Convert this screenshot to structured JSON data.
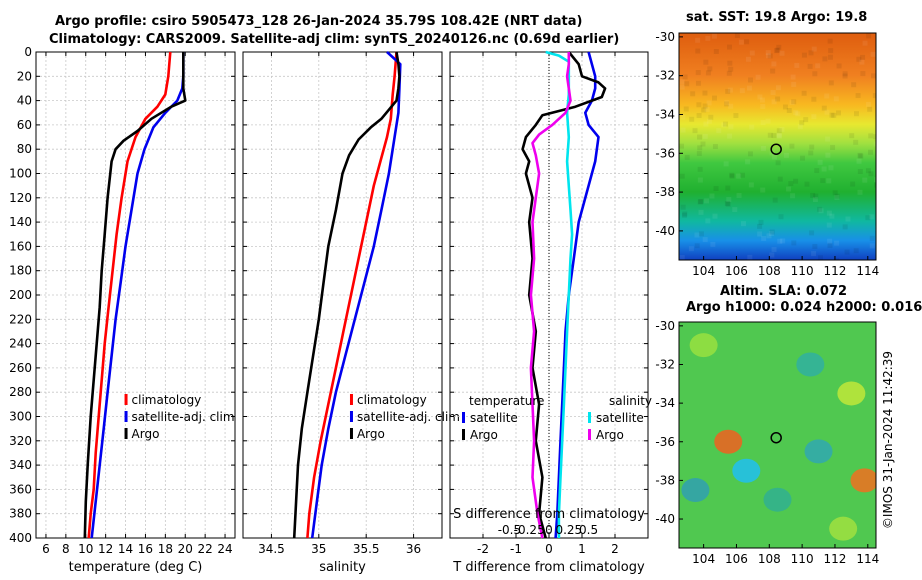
{
  "header": {
    "line1": "Argo profile: csiro 5905473_128 26-Jan-2024 35.79S 108.42E (NRT data)",
    "line2": "Climatology: CARS2009. Satellite-adj clim: synTS_20240126.nc (0.69d earlier)"
  },
  "credit": "©IMOS 31-Jan-2024 11:42:39",
  "colors": {
    "red": "#ff0000",
    "blue": "#0000ee",
    "black": "#000000",
    "cyan": "#00e5ee",
    "magenta": "#ee00ee"
  },
  "chart_data": [
    {
      "type": "line",
      "id": "temperature",
      "xlabel": "temperature (deg C)",
      "ylabel": "",
      "xlim": [
        5,
        25
      ],
      "ylim": [
        400,
        0
      ],
      "xticks": [
        6,
        8,
        10,
        12,
        14,
        16,
        18,
        20,
        22,
        24
      ],
      "yticks": [
        0,
        20,
        40,
        60,
        80,
        100,
        120,
        140,
        160,
        180,
        200,
        220,
        240,
        260,
        280,
        300,
        320,
        340,
        360,
        380,
        400
      ],
      "grid": true,
      "legend": [
        "climatology",
        "satellite-adj. clim",
        "Argo"
      ],
      "series": [
        {
          "name": "climatology",
          "color": "red",
          "points": [
            [
              18.5,
              0
            ],
            [
              18.3,
              20
            ],
            [
              18.0,
              35
            ],
            [
              17.2,
              45
            ],
            [
              16.0,
              55
            ],
            [
              15.0,
              70
            ],
            [
              14.2,
              90
            ],
            [
              13.6,
              120
            ],
            [
              13.1,
              150
            ],
            [
              12.7,
              180
            ],
            [
              12.3,
              210
            ],
            [
              11.9,
              240
            ],
            [
              11.6,
              270
            ],
            [
              11.3,
              300
            ],
            [
              11.0,
              330
            ],
            [
              10.8,
              360
            ],
            [
              10.5,
              380
            ],
            [
              10.3,
              400
            ]
          ]
        },
        {
          "name": "satellite-adj. clim",
          "color": "blue",
          "points": [
            [
              19.8,
              0
            ],
            [
              19.8,
              20
            ],
            [
              19.7,
              30
            ],
            [
              19.2,
              40
            ],
            [
              18.0,
              50
            ],
            [
              16.8,
              62
            ],
            [
              15.9,
              80
            ],
            [
              15.2,
              100
            ],
            [
              14.6,
              130
            ],
            [
              14.0,
              160
            ],
            [
              13.5,
              190
            ],
            [
              13.0,
              220
            ],
            [
              12.6,
              250
            ],
            [
              12.2,
              280
            ],
            [
              11.8,
              310
            ],
            [
              11.4,
              340
            ],
            [
              11.0,
              370
            ],
            [
              10.6,
              400
            ]
          ]
        },
        {
          "name": "Argo",
          "color": "black",
          "points": [
            [
              19.8,
              0
            ],
            [
              19.8,
              20
            ],
            [
              19.8,
              30
            ],
            [
              20.0,
              40
            ],
            [
              18.6,
              45
            ],
            [
              16.6,
              55
            ],
            [
              15.2,
              65
            ],
            [
              13.8,
              73
            ],
            [
              13.0,
              80
            ],
            [
              12.6,
              90
            ],
            [
              12.4,
              105
            ],
            [
              12.2,
              120
            ],
            [
              11.9,
              150
            ],
            [
              11.6,
              180
            ],
            [
              11.4,
              210
            ],
            [
              11.1,
              240
            ],
            [
              10.8,
              270
            ],
            [
              10.5,
              300
            ],
            [
              10.2,
              340
            ],
            [
              10.0,
              370
            ],
            [
              9.9,
              400
            ]
          ]
        }
      ]
    },
    {
      "type": "line",
      "id": "salinity",
      "xlabel": "salinity",
      "xlim": [
        34.2,
        36.3
      ],
      "ylim": [
        400,
        0
      ],
      "xticks": [
        34.5,
        35,
        35.5,
        36
      ],
      "xticklabels": [
        "34.5",
        "35",
        "35.5",
        "36"
      ],
      "grid": true,
      "legend": [
        "climatology",
        "satellite-adj. clim",
        "Argo"
      ],
      "series": [
        {
          "name": "climatology",
          "color": "red",
          "points": [
            [
              35.82,
              0
            ],
            [
              35.8,
              20
            ],
            [
              35.78,
              35
            ],
            [
              35.76,
              55
            ],
            [
              35.72,
              70
            ],
            [
              35.65,
              90
            ],
            [
              35.58,
              110
            ],
            [
              35.5,
              140
            ],
            [
              35.42,
              170
            ],
            [
              35.34,
              200
            ],
            [
              35.26,
              230
            ],
            [
              35.18,
              260
            ],
            [
              35.1,
              290
            ],
            [
              35.02,
              320
            ],
            [
              34.95,
              350
            ],
            [
              34.9,
              380
            ],
            [
              34.88,
              400
            ]
          ]
        },
        {
          "name": "satellite-adj. clim",
          "color": "blue",
          "points": [
            [
              35.72,
              0
            ],
            [
              35.86,
              10
            ],
            [
              35.85,
              30
            ],
            [
              35.84,
              50
            ],
            [
              35.8,
              70
            ],
            [
              35.74,
              100
            ],
            [
              35.66,
              130
            ],
            [
              35.58,
              160
            ],
            [
              35.48,
              190
            ],
            [
              35.38,
              220
            ],
            [
              35.28,
              250
            ],
            [
              35.18,
              280
            ],
            [
              35.1,
              310
            ],
            [
              35.03,
              340
            ],
            [
              34.98,
              370
            ],
            [
              34.93,
              400
            ]
          ]
        },
        {
          "name": "Argo",
          "color": "black",
          "points": [
            [
              35.82,
              0
            ],
            [
              35.84,
              10
            ],
            [
              35.85,
              20
            ],
            [
              35.84,
              30
            ],
            [
              35.82,
              40
            ],
            [
              35.66,
              55
            ],
            [
              35.55,
              62
            ],
            [
              35.42,
              72
            ],
            [
              35.32,
              85
            ],
            [
              35.25,
              100
            ],
            [
              35.18,
              130
            ],
            [
              35.1,
              160
            ],
            [
              35.05,
              190
            ],
            [
              35.0,
              220
            ],
            [
              34.94,
              250
            ],
            [
              34.88,
              280
            ],
            [
              34.82,
              310
            ],
            [
              34.78,
              340
            ],
            [
              34.76,
              370
            ],
            [
              34.74,
              400
            ]
          ]
        }
      ]
    },
    {
      "type": "line",
      "id": "difference",
      "xlabel": "T difference from climatology",
      "xlabel_top": "S difference from climatology",
      "xlim": [
        -3,
        3
      ],
      "ylim": [
        400,
        0
      ],
      "xticks": [
        -2,
        -1,
        0,
        1,
        2
      ],
      "xticklabels": [
        "-2",
        "-1",
        "0",
        "1",
        "2"
      ],
      "top_ticks": [
        -1.2,
        -0.6,
        0,
        0.6,
        1.2
      ],
      "top_ticklabels": [
        "-0.5",
        "-0.25",
        "0",
        "0.25",
        "0.5"
      ],
      "zero_line": "dotted",
      "legend_left_title": "temperature",
      "legend_right_title": "salinity",
      "legend_left": [
        "satellite",
        "Argo"
      ],
      "legend_right": [
        "satellite",
        "Argo"
      ],
      "series": [
        {
          "name": "temperature satellite",
          "color": "blue",
          "points": [
            [
              1.2,
              0
            ],
            [
              1.3,
              10
            ],
            [
              1.4,
              20
            ],
            [
              1.4,
              30
            ],
            [
              1.3,
              40
            ],
            [
              1.1,
              50
            ],
            [
              1.2,
              60
            ],
            [
              1.5,
              70
            ],
            [
              1.4,
              90
            ],
            [
              1.2,
              110
            ],
            [
              0.9,
              140
            ],
            [
              0.75,
              170
            ],
            [
              0.6,
              200
            ],
            [
              0.5,
              230
            ],
            [
              0.45,
              260
            ],
            [
              0.4,
              290
            ],
            [
              0.35,
              320
            ],
            [
              0.3,
              350
            ],
            [
              0.25,
              380
            ],
            [
              0.2,
              400
            ]
          ]
        },
        {
          "name": "temperature Argo",
          "color": "black",
          "points": [
            [
              0.6,
              0
            ],
            [
              0.9,
              10
            ],
            [
              1.0,
              20
            ],
            [
              1.5,
              25
            ],
            [
              1.7,
              30
            ],
            [
              1.6,
              37
            ],
            [
              1.3,
              40
            ],
            [
              0.8,
              45
            ],
            [
              -0.2,
              52
            ],
            [
              -0.4,
              60
            ],
            [
              -0.7,
              70
            ],
            [
              -0.8,
              80
            ],
            [
              -0.6,
              90
            ],
            [
              -0.7,
              100
            ],
            [
              -0.5,
              120
            ],
            [
              -0.6,
              140
            ],
            [
              -0.5,
              170
            ],
            [
              -0.6,
              200
            ],
            [
              -0.4,
              230
            ],
            [
              -0.5,
              260
            ],
            [
              -0.3,
              290
            ],
            [
              -0.4,
              320
            ],
            [
              -0.2,
              350
            ],
            [
              -0.3,
              380
            ],
            [
              -0.1,
              400
            ]
          ]
        },
        {
          "name": "salinity satellite",
          "color": "cyan",
          "points": [
            [
              -0.1,
              0
            ],
            [
              0.3,
              3
            ],
            [
              0.6,
              8
            ],
            [
              0.6,
              20
            ],
            [
              0.6,
              35
            ],
            [
              0.55,
              50
            ],
            [
              0.6,
              70
            ],
            [
              0.55,
              90
            ],
            [
              0.6,
              110
            ],
            [
              0.65,
              130
            ],
            [
              0.7,
              150
            ],
            [
              0.65,
              170
            ],
            [
              0.6,
              200
            ],
            [
              0.55,
              230
            ],
            [
              0.5,
              260
            ],
            [
              0.45,
              290
            ],
            [
              0.4,
              320
            ],
            [
              0.35,
              350
            ],
            [
              0.3,
              380
            ],
            [
              0.3,
              400
            ]
          ]
        },
        {
          "name": "salinity Argo",
          "color": "magenta",
          "points": [
            [
              0.6,
              0
            ],
            [
              0.6,
              10
            ],
            [
              0.55,
              20
            ],
            [
              0.6,
              30
            ],
            [
              0.65,
              40
            ],
            [
              0.5,
              50
            ],
            [
              0.1,
              60
            ],
            [
              -0.3,
              68
            ],
            [
              -0.5,
              75
            ],
            [
              -0.4,
              85
            ],
            [
              -0.3,
              100
            ],
            [
              -0.4,
              120
            ],
            [
              -0.5,
              140
            ],
            [
              -0.45,
              170
            ],
            [
              -0.55,
              200
            ],
            [
              -0.45,
              230
            ],
            [
              -0.55,
              260
            ],
            [
              -0.5,
              290
            ],
            [
              -0.45,
              320
            ],
            [
              -0.5,
              350
            ],
            [
              -0.35,
              380
            ],
            [
              -0.2,
              400
            ]
          ]
        }
      ]
    },
    {
      "type": "heatmap",
      "id": "sst-map",
      "title": "sat. SST: 19.8 Argo: 19.8",
      "xlim": [
        102.5,
        114.5
      ],
      "ylim": [
        -41.5,
        -29.8
      ],
      "xticks": [
        104,
        106,
        108,
        110,
        112,
        114
      ],
      "yticks": [
        -30,
        -32,
        -34,
        -36,
        -38,
        -40
      ],
      "marker": [
        108.42,
        -35.79
      ],
      "bands": [
        {
          "lat": -30,
          "color": "#e06010"
        },
        {
          "lat": -32,
          "color": "#f08020"
        },
        {
          "lat": -33.5,
          "color": "#f8b820"
        },
        {
          "lat": -34.5,
          "color": "#e8e830"
        },
        {
          "lat": -35.5,
          "color": "#a0e040"
        },
        {
          "lat": -36.5,
          "color": "#40c840"
        },
        {
          "lat": -38,
          "color": "#20b030"
        },
        {
          "lat": -39.5,
          "color": "#10b8a0"
        },
        {
          "lat": -40.5,
          "color": "#1890e8"
        },
        {
          "lat": -41.5,
          "color": "#1040c0"
        }
      ]
    },
    {
      "type": "heatmap",
      "id": "sla-map",
      "title": "Altim. SLA: 0.072",
      "subtitle": "Argo h1000: 0.024 h2000: 0.016",
      "xlim": [
        102.5,
        114.5
      ],
      "ylim": [
        -41.5,
        -29.8
      ],
      "xticks": [
        104,
        106,
        108,
        110,
        112,
        114
      ],
      "yticks": [
        -30,
        -32,
        -34,
        -36,
        -38,
        -40
      ],
      "marker": [
        108.42,
        -35.79
      ],
      "base_color": "#50c850",
      "blobs": [
        {
          "lon": 105.5,
          "lat": -36,
          "color": "#f06020"
        },
        {
          "lon": 106.6,
          "lat": -37.5,
          "color": "#20c0f0"
        },
        {
          "lon": 113.8,
          "lat": -38,
          "color": "#f07020"
        },
        {
          "lon": 110.5,
          "lat": -32,
          "color": "#30b0a0"
        },
        {
          "lon": 104,
          "lat": -31,
          "color": "#98e040"
        },
        {
          "lon": 111,
          "lat": -36.5,
          "color": "#30a8b0"
        },
        {
          "lon": 103.5,
          "lat": -38.5,
          "color": "#30a0b0"
        },
        {
          "lon": 112.5,
          "lat": -40.5,
          "color": "#a0e040"
        },
        {
          "lon": 108.5,
          "lat": -39,
          "color": "#30b090"
        },
        {
          "lon": 113,
          "lat": -33.5,
          "color": "#c0e838"
        }
      ]
    }
  ]
}
